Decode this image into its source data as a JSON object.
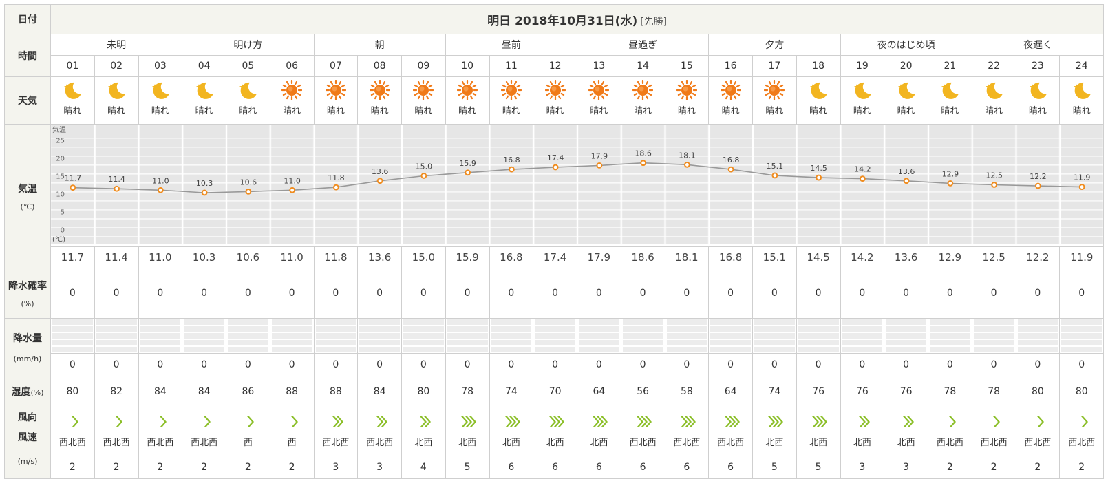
{
  "labels": {
    "date": "日付",
    "time": "時間",
    "weather": "天気",
    "temp": "気温",
    "temp_unit": "(℃)",
    "prob": "降水確率",
    "prob_unit": "(%)",
    "precip": "降水量",
    "precip_unit": "(mm/h)",
    "humidity": "湿度",
    "humidity_unit": "(%)",
    "wind_dir": "風向",
    "wind_speed": "風速",
    "wind_unit": "(m/s)"
  },
  "date_header": {
    "text": "明日 2018年10月31日(水)",
    "tag": "[先勝]"
  },
  "periods": [
    "未明",
    "明け方",
    "朝",
    "昼前",
    "昼過ぎ",
    "夕方",
    "夜のはじめ頃",
    "夜遅く"
  ],
  "hours": [
    "01",
    "02",
    "03",
    "04",
    "05",
    "06",
    "07",
    "08",
    "09",
    "10",
    "11",
    "12",
    "13",
    "14",
    "15",
    "16",
    "17",
    "18",
    "19",
    "20",
    "21",
    "22",
    "23",
    "24"
  ],
  "weather": [
    {
      "icon": "moon-icon",
      "label": "晴れ"
    },
    {
      "icon": "moon-icon",
      "label": "晴れ"
    },
    {
      "icon": "moon-icon",
      "label": "晴れ"
    },
    {
      "icon": "moon-icon",
      "label": "晴れ"
    },
    {
      "icon": "moon-icon",
      "label": "晴れ"
    },
    {
      "icon": "sun-icon",
      "label": "晴れ"
    },
    {
      "icon": "sun-icon",
      "label": "晴れ"
    },
    {
      "icon": "sun-icon",
      "label": "晴れ"
    },
    {
      "icon": "sun-icon",
      "label": "晴れ"
    },
    {
      "icon": "sun-icon",
      "label": "晴れ"
    },
    {
      "icon": "sun-icon",
      "label": "晴れ"
    },
    {
      "icon": "sun-icon",
      "label": "晴れ"
    },
    {
      "icon": "sun-icon",
      "label": "晴れ"
    },
    {
      "icon": "sun-icon",
      "label": "晴れ"
    },
    {
      "icon": "sun-icon",
      "label": "晴れ"
    },
    {
      "icon": "sun-icon",
      "label": "晴れ"
    },
    {
      "icon": "sun-icon",
      "label": "晴れ"
    },
    {
      "icon": "moon-icon",
      "label": "晴れ"
    },
    {
      "icon": "moon-icon",
      "label": "晴れ"
    },
    {
      "icon": "moon-icon",
      "label": "晴れ"
    },
    {
      "icon": "moon-icon",
      "label": "晴れ"
    },
    {
      "icon": "moon-icon",
      "label": "晴れ"
    },
    {
      "icon": "moon-icon",
      "label": "晴れ"
    },
    {
      "icon": "moon-icon",
      "label": "晴れ"
    }
  ],
  "chart_data": {
    "type": "line",
    "title": "",
    "ylabel_top": "気温",
    "ylabel_bottom": "(℃)",
    "ylim": [
      -2,
      27
    ],
    "yticks": [
      "25",
      "20",
      "15",
      "10",
      "5",
      "0"
    ],
    "ytick_values": [
      25,
      20,
      15,
      10,
      5,
      0
    ],
    "x": [
      "01",
      "02",
      "03",
      "04",
      "05",
      "06",
      "07",
      "08",
      "09",
      "10",
      "11",
      "12",
      "13",
      "14",
      "15",
      "16",
      "17",
      "18",
      "19",
      "20",
      "21",
      "22",
      "23",
      "24"
    ],
    "values": [
      11.7,
      11.4,
      11.0,
      10.3,
      10.6,
      11.0,
      11.8,
      13.6,
      15.0,
      15.9,
      16.8,
      17.4,
      17.9,
      18.6,
      18.1,
      16.8,
      15.1,
      14.5,
      14.2,
      13.6,
      12.9,
      12.5,
      12.2,
      11.9
    ],
    "labels": [
      "11.7",
      "11.4",
      "11.0",
      "10.3",
      "10.6",
      "11.0",
      "11.8",
      "13.6",
      "15.0",
      "15.9",
      "16.8",
      "17.4",
      "17.9",
      "18.6",
      "18.1",
      "16.8",
      "15.1",
      "14.5",
      "14.2",
      "13.6",
      "12.9",
      "12.5",
      "12.2",
      "11.9"
    ],
    "grid": true,
    "line_color": "#999999",
    "marker_color": "#f08c1e",
    "background": "#ebebeb"
  },
  "temperature": [
    "11.7",
    "11.4",
    "11.0",
    "10.3",
    "10.6",
    "11.0",
    "11.8",
    "13.6",
    "15.0",
    "15.9",
    "16.8",
    "17.4",
    "17.9",
    "18.6",
    "18.1",
    "16.8",
    "15.1",
    "14.5",
    "14.2",
    "13.6",
    "12.9",
    "12.5",
    "12.2",
    "11.9"
  ],
  "precip_probability": [
    "0",
    "0",
    "0",
    "0",
    "0",
    "0",
    "0",
    "0",
    "0",
    "0",
    "0",
    "0",
    "0",
    "0",
    "0",
    "0",
    "0",
    "0",
    "0",
    "0",
    "0",
    "0",
    "0",
    "0"
  ],
  "precip_amount": [
    "0",
    "0",
    "0",
    "0",
    "0",
    "0",
    "0",
    "0",
    "0",
    "0",
    "0",
    "0",
    "0",
    "0",
    "0",
    "0",
    "0",
    "0",
    "0",
    "0",
    "0",
    "0",
    "0",
    "0"
  ],
  "humidity": [
    "80",
    "82",
    "84",
    "84",
    "86",
    "88",
    "88",
    "84",
    "80",
    "78",
    "74",
    "70",
    "64",
    "56",
    "58",
    "64",
    "74",
    "76",
    "76",
    "76",
    "78",
    "78",
    "80",
    "80"
  ],
  "wind_direction": [
    "西北西",
    "西北西",
    "西北西",
    "西北西",
    "西",
    "西",
    "西北西",
    "西北西",
    "北西",
    "北西",
    "北西",
    "北西",
    "北西",
    "西北西",
    "西北西",
    "西北西",
    "北西",
    "北西",
    "北西",
    "北西",
    "西北西",
    "西北西",
    "西北西",
    "西北西"
  ],
  "wind_speed": [
    "2",
    "2",
    "2",
    "2",
    "2",
    "2",
    "3",
    "3",
    "4",
    "5",
    "6",
    "6",
    "6",
    "6",
    "6",
    "6",
    "5",
    "5",
    "3",
    "3",
    "2",
    "2",
    "2",
    "2"
  ],
  "colors": {
    "header_bg": "#f4f4ee",
    "wind_icon": "#8cbf2a",
    "sun": "#f07a18",
    "moon": "#f2b520"
  }
}
